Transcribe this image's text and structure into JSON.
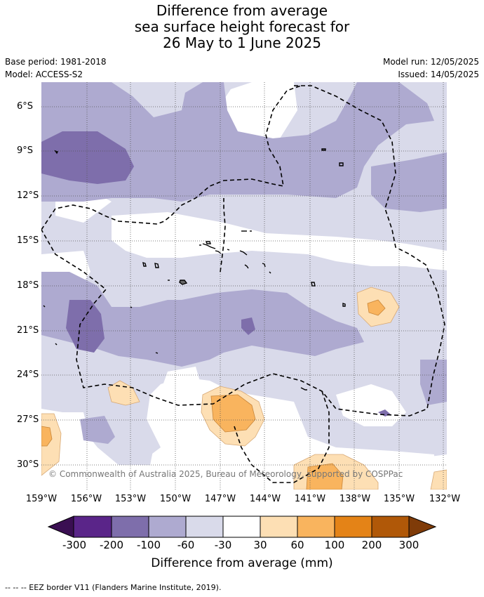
{
  "title": {
    "line1": "Difference from average",
    "line2": "sea surface height forecast for",
    "line3": "26 May to 1 June 2025"
  },
  "meta": {
    "base_period": "Base period: 1981-2018",
    "model": "Model: ACCESS-S2",
    "model_run": "Model run: 12/05/2025",
    "issued": "Issued: 14/05/2025"
  },
  "map": {
    "lat_labels": [
      "6°S",
      "9°S",
      "12°S",
      "15°S",
      "18°S",
      "21°S",
      "24°S",
      "27°S",
      "30°S"
    ],
    "lon_labels": [
      "159°W",
      "156°W",
      "153°W",
      "150°W",
      "147°W",
      "144°W",
      "141°W",
      "138°W",
      "135°W",
      "132°W"
    ],
    "copyright": "© Commonwealth of Australia 2025, Bureau of Meteorology, supported by COSPPac"
  },
  "colorbar": {
    "ticks": [
      "-300",
      "-200",
      "-100",
      "-60",
      "-30",
      "30",
      "60",
      "100",
      "200",
      "300"
    ],
    "colors": {
      "lt_-300": "#3a0f52",
      "-300_-200": "#5a2589",
      "-200_-100": "#7e6eab",
      "-100_-60": "#aeaad0",
      "-60_-30": "#d9daea",
      "-30_30": "#ffffff",
      "30_60": "#fddfb4",
      "60_100": "#f9b45e",
      "100_200": "#e48317",
      "200_300": "#b05808",
      "gt_300": "#7f3b08"
    },
    "title": "Difference from average (mm)"
  },
  "footer": "--  --  -- EEZ border V11 (Flanders Marine Institute, 2019)."
}
